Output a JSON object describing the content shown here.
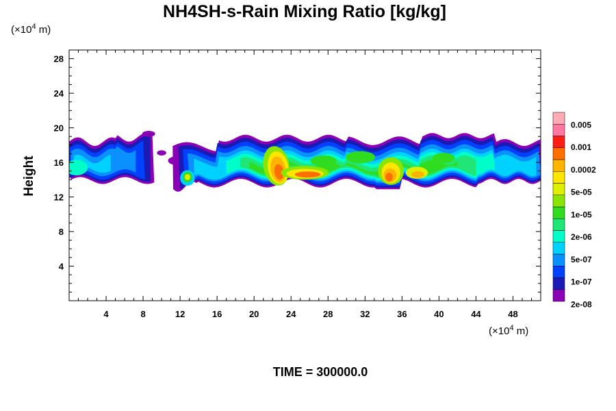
{
  "chart_data": {
    "type": "heatmap",
    "title": "NH4SH-s-Rain Mixing Ratio [kg/kg]",
    "ylabel": "Height",
    "xunit": "(×10",
    "xunit_exp": "4",
    "xunit_end": " m)",
    "yunit": "(×10",
    "yunit_exp": "4",
    "yunit_end": " m)",
    "xlim": [
      0,
      51
    ],
    "ylim": [
      0,
      29
    ],
    "xticks": [
      "4",
      "8",
      "12",
      "16",
      "20",
      "24",
      "28",
      "32",
      "36",
      "40",
      "44",
      "48"
    ],
    "xtick_values": [
      4,
      8,
      12,
      16,
      20,
      24,
      28,
      32,
      36,
      40,
      44,
      48
    ],
    "yticks": [
      "4",
      "8",
      "12",
      "16",
      "20",
      "24",
      "28"
    ],
    "ytick_values": [
      4,
      8,
      12,
      16,
      20,
      24,
      28
    ],
    "colorbar": {
      "labels": [
        "0.005",
        "0.001",
        "0.0002",
        "5e-05",
        "1e-05",
        "2e-06",
        "5e-07",
        "1e-07",
        "2e-08"
      ],
      "colors": [
        "#8a00b4",
        "#1a1ab4",
        "#0040ff",
        "#0a90ff",
        "#00d2ff",
        "#00ffc8",
        "#20e678",
        "#30dc20",
        "#8ae600",
        "#dcf000",
        "#ffe600",
        "#ffb400",
        "#ff6e00",
        "#ff1e14",
        "#ff78a0",
        "#ffaab4"
      ]
    },
    "footer": "TIME = 300000.0"
  }
}
